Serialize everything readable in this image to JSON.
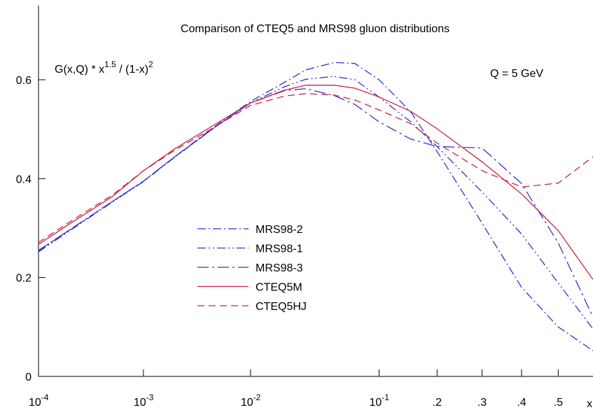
{
  "chart_data": {
    "type": "line",
    "title": "Comparison of CTEQ5 and MRS98 gluon distributions",
    "ylabel": [
      "G(x,Q) * x",
      "1.5",
      " / (1-x)",
      "2"
    ],
    "xlabel": "x",
    "annotation": "Q = 5 GeV",
    "x": [
      0.0001,
      0.0002,
      0.0005,
      0.001,
      0.002,
      0.005,
      0.01,
      0.02,
      0.03,
      0.05,
      0.07,
      0.1,
      0.15,
      0.2,
      0.3,
      0.4,
      0.5,
      0.6
    ],
    "series": [
      {
        "name": "MRS98-2",
        "color": "#3333cc",
        "linestyle": "dash-dot",
        "values": [
          0.254,
          0.297,
          0.353,
          0.395,
          0.445,
          0.51,
          0.556,
          0.595,
          0.62,
          0.635,
          0.633,
          0.6,
          0.535,
          0.455,
          0.31,
          0.18,
          0.1,
          0.052
        ]
      },
      {
        "name": "MRS98-1",
        "color": "#3333cc",
        "linestyle": "dash-dot-dot",
        "values": [
          0.252,
          0.295,
          0.352,
          0.394,
          0.444,
          0.508,
          0.553,
          0.586,
          0.601,
          0.607,
          0.6,
          0.565,
          0.515,
          0.465,
          0.373,
          0.288,
          0.189,
          0.096
        ]
      },
      {
        "name": "MRS98-3",
        "color": "#3333cc",
        "linestyle": "dash-dot-long",
        "values": [
          0.255,
          0.297,
          0.353,
          0.395,
          0.445,
          0.508,
          0.553,
          0.578,
          0.582,
          0.568,
          0.55,
          0.515,
          0.48,
          0.465,
          0.462,
          0.39,
          0.27,
          0.12
        ]
      },
      {
        "name": "CTEQ5M",
        "color": "#cc2244",
        "linestyle": "solid",
        "values": [
          0.267,
          0.309,
          0.363,
          0.416,
          0.461,
          0.513,
          0.553,
          0.579,
          0.589,
          0.589,
          0.583,
          0.565,
          0.536,
          0.501,
          0.434,
          0.369,
          0.295,
          0.196
        ]
      },
      {
        "name": "CTEQ5HJ",
        "color": "#cc2244",
        "linestyle": "dash",
        "values": [
          0.271,
          0.313,
          0.366,
          0.416,
          0.458,
          0.508,
          0.548,
          0.567,
          0.572,
          0.569,
          0.559,
          0.539,
          0.511,
          0.472,
          0.416,
          0.383,
          0.391,
          0.444
        ]
      }
    ],
    "xlim": [
      0.0001,
      0.6
    ],
    "xticks": [
      {
        "value": 0.0001,
        "label": [
          "10",
          "-4"
        ]
      },
      {
        "value": 0.001,
        "label": [
          "10",
          "-3"
        ]
      },
      {
        "value": 0.01,
        "label": [
          "10",
          "-2"
        ]
      },
      {
        "value": 0.1,
        "label": [
          "10",
          "-1"
        ]
      },
      {
        "value": 0.2,
        "label": ".2"
      },
      {
        "value": 0.3,
        "label": ".3"
      },
      {
        "value": 0.4,
        "label": ".4"
      },
      {
        "value": 0.5,
        "label": ".5"
      }
    ],
    "ylim": [
      0,
      0.75
    ],
    "yticks": [
      0,
      0.2,
      0.4,
      0.6
    ]
  }
}
